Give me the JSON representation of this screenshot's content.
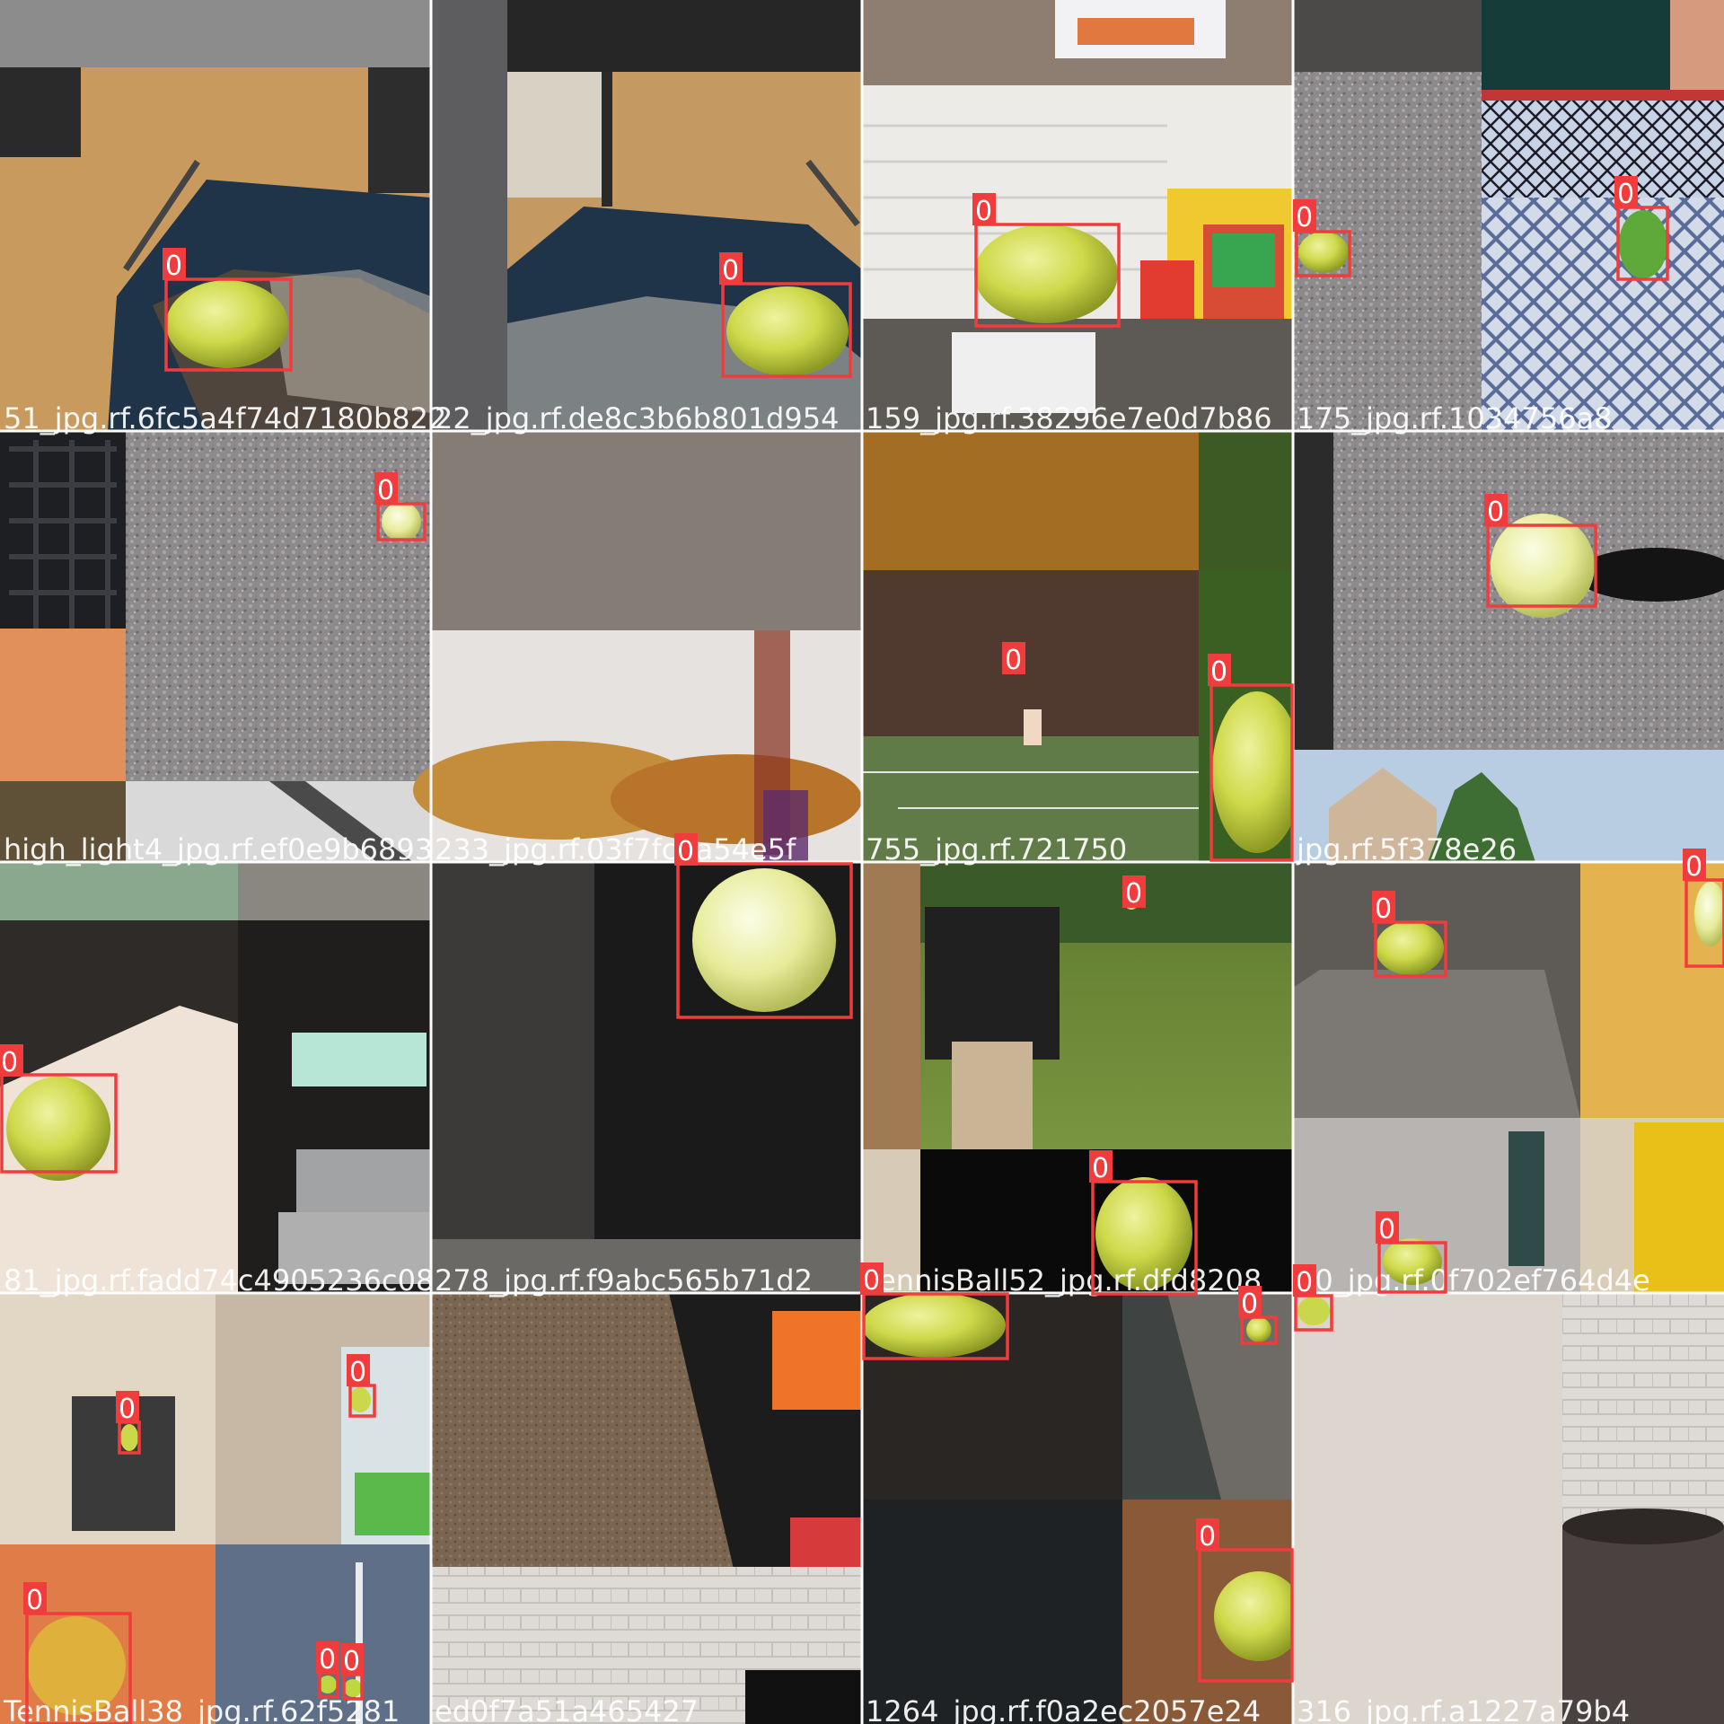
{
  "class_label": "0",
  "colors": {
    "box": "#f03c3c",
    "label_text": "#ffffff",
    "grid": "#ffffff"
  },
  "filenames": [
    "51_jpg.rf.6fc5a4f74d7180b822",
    "22_jpg.rf.de8c3b6b801d954",
    "159_jpg.rf.38296e7e0d7b86",
    "175_jpg.rf.1034756a8",
    "high_light4_jpg.rf.ef0e9b6893",
    "233_jpg.rf.03f7fc3a54e5f",
    "755_jpg.rf.721750",
    "jpg.rf.5f378e26",
    "81_jpg.rf.fadd74c4905236c08",
    "278_jpg.rf.f9abc565b71d2",
    "TennisBall52_jpg.rf.dfd8208",
    "40_jpg.rf.0f702ef764d4e",
    "TennisBall38_jpg.rf.62f5281",
    "ed0f7a51a465427",
    "1264_jpg.rf.f0a2ec2057e24",
    "316_jpg.rf.a1227a79b4"
  ]
}
